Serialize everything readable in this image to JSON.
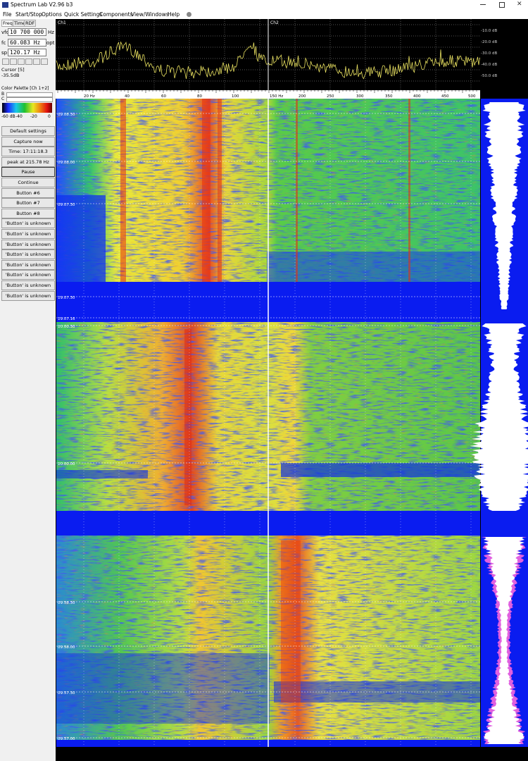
{
  "window": {
    "title": "Spectrum Lab V2.96 b3"
  },
  "menu": [
    "File",
    "Start/Stop",
    "Options",
    "Quick Settings",
    "Components",
    "View/Windows",
    "Help"
  ],
  "left_panel": {
    "tabs": [
      "Freq",
      "Time",
      "RDF"
    ],
    "vfo": {
      "label": "vfo",
      "value": "10 700 000",
      "unit": "Hz"
    },
    "fc": {
      "label": "fc",
      "value": "60.083 Hz",
      "extra": "opt"
    },
    "sp": {
      "label": "sp",
      "value": "120.17 Hz"
    },
    "cursor": {
      "label": "Cursor [5]",
      "value": "-35.5dB"
    },
    "palette": {
      "title": "Color Palette [Ch 1+2]",
      "b": "B",
      "c": "C",
      "scale": [
        "-60 dB",
        "-40",
        "-20",
        "0"
      ]
    },
    "buttons": [
      "Default settings",
      "Capture now",
      "Time:  17:11:18.3",
      "peak at 215.78 Hz",
      "Pause",
      "Continue",
      "Button #6",
      "Button #7",
      "Button #8",
      "'Button' is unknown",
      "'Button' is unknown",
      "'Button' is unknown",
      "'Button' is unknown",
      "'Button' is unknown",
      "'Button' is unknown",
      "'Button' is unknown",
      "'Button' is unknown"
    ]
  },
  "spectrum": {
    "channels": [
      "Ch1",
      "Ch2"
    ],
    "db_labels": [
      "-10.0 dB",
      "-20.0 dB",
      "-30.0 dB",
      "-40.0 dB",
      "-50.0 dB"
    ],
    "freq_labels_ch1": [
      "20 Hz",
      "40",
      "60",
      "80",
      "100"
    ],
    "freq_labels_ch2": [
      "150 Hz",
      "200",
      "250",
      "300",
      "350",
      "400",
      "450",
      "500"
    ]
  },
  "waterfall": {
    "time_labels": [
      "09.08.30",
      "09.08.00",
      "09.07.30",
      "19.07.30",
      "19.07.16",
      "10.00.30",
      "10.00.00",
      "09.58.30",
      "09.58.00",
      "09.57.30",
      "09.57.00"
    ]
  }
}
